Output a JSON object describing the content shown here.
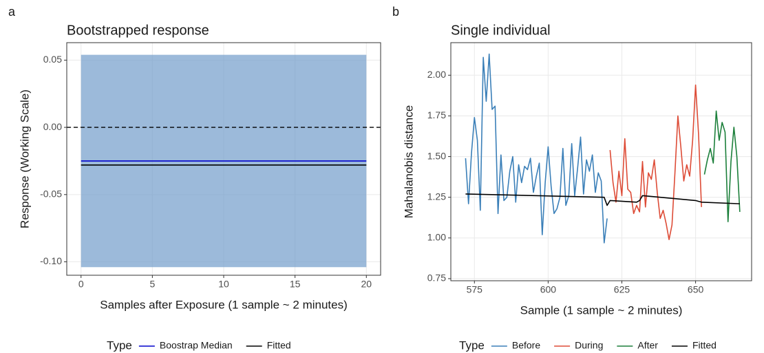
{
  "chart_data": [
    {
      "type": "line",
      "panel_label": "a",
      "title": "Bootstrapped response",
      "x_label": "Samples after Exposure (1 sample ~ 2 minutes)",
      "y_label": "Response (Working Scale)",
      "xlim": [
        -1,
        21
      ],
      "ylim": [
        -0.11,
        0.063
      ],
      "xticks": [
        0,
        5,
        10,
        15,
        20
      ],
      "yticks": [
        {
          "value": -0.1,
          "label": "-0.10"
        },
        -0.05,
        {
          "value": 0,
          "label": "0.00"
        },
        0.05
      ],
      "grid": true,
      "band": {
        "x": [
          0,
          20
        ],
        "lower": [
          -0.104,
          -0.104
        ],
        "upper": [
          0.054,
          0.054
        ],
        "color": "#6d9ac8"
      },
      "hline": 0,
      "legend_title": "Type",
      "legend_position": "bottom",
      "series": [
        {
          "name": "Boostrap Median",
          "color": "#0000cc",
          "x": [
            0,
            20
          ],
          "values": [
            -0.025,
            -0.025
          ]
        },
        {
          "name": "Fitted",
          "color": "#000000",
          "x": [
            0,
            20
          ],
          "values": [
            -0.028,
            -0.028
          ]
        }
      ]
    },
    {
      "type": "line",
      "panel_label": "b",
      "title": "Single individual",
      "x_label": "Sample (1 sample ~ 2 minutes)",
      "y_label": "Mahalanobis distance",
      "xlim": [
        567,
        669
      ],
      "ylim": [
        0.737,
        2.2
      ],
      "xticks": [
        575,
        600,
        625,
        650
      ],
      "yticks": [
        0.75,
        {
          "value": 1,
          "label": "1.00"
        },
        1.25,
        {
          "value": 1.5,
          "label": "1.50"
        },
        1.75,
        {
          "value": 2,
          "label": "2.00"
        }
      ],
      "grid": true,
      "legend_title": "Type",
      "legend_position": "bottom",
      "series": [
        {
          "name": "Before",
          "color": "#3a7fb8",
          "x": [
            572,
            573,
            574,
            575,
            576,
            577,
            578,
            579,
            580,
            581,
            582,
            583,
            584,
            585,
            586,
            587,
            588,
            589,
            590,
            591,
            592,
            593,
            594,
            595,
            596,
            597,
            598,
            599,
            600,
            601,
            602,
            603,
            604,
            605,
            606,
            607,
            608,
            609,
            610,
            611,
            612,
            613,
            614,
            615,
            616,
            617,
            618,
            619,
            620
          ],
          "values": [
            1.49,
            1.21,
            1.52,
            1.74,
            1.6,
            1.17,
            2.11,
            1.84,
            2.13,
            1.79,
            1.81,
            1.15,
            1.51,
            1.23,
            1.25,
            1.41,
            1.5,
            1.22,
            1.45,
            1.34,
            1.44,
            1.42,
            1.49,
            1.28,
            1.38,
            1.46,
            1.02,
            1.34,
            1.56,
            1.32,
            1.15,
            1.18,
            1.25,
            1.55,
            1.2,
            1.26,
            1.58,
            1.26,
            1.43,
            1.62,
            1.27,
            1.48,
            1.41,
            1.51,
            1.28,
            1.4,
            1.35,
            0.97,
            1.12
          ]
        },
        {
          "name": "During",
          "color": "#dd4b36",
          "x": [
            621,
            622,
            623,
            624,
            625,
            626,
            627,
            628,
            629,
            630,
            631,
            632,
            633,
            634,
            635,
            636,
            637,
            638,
            639,
            640,
            641,
            642,
            643,
            644,
            645,
            646,
            647,
            648,
            649,
            650,
            651,
            652
          ],
          "values": [
            1.54,
            1.34,
            1.22,
            1.41,
            1.26,
            1.61,
            1.3,
            1.28,
            1.15,
            1.2,
            1.16,
            1.47,
            1.19,
            1.4,
            1.36,
            1.48,
            1.28,
            1.12,
            1.17,
            1.09,
            0.99,
            1.08,
            1.4,
            1.75,
            1.56,
            1.35,
            1.45,
            1.38,
            1.6,
            1.94,
            1.64,
            1.19
          ]
        },
        {
          "name": "After",
          "color": "#1b7f3a",
          "x": [
            653,
            654,
            655,
            656,
            657,
            658,
            659,
            660,
            661,
            662,
            663,
            664,
            665
          ],
          "values": [
            1.39,
            1.48,
            1.55,
            1.46,
            1.78,
            1.6,
            1.71,
            1.65,
            1.1,
            1.47,
            1.68,
            1.5,
            1.16
          ]
        },
        {
          "name": "Fitted",
          "color": "#000000",
          "x": [
            572,
            619,
            620,
            621,
            630,
            631,
            632,
            650,
            652,
            665
          ],
          "values": [
            1.27,
            1.25,
            1.2,
            1.23,
            1.22,
            1.23,
            1.26,
            1.23,
            1.22,
            1.21
          ]
        }
      ]
    }
  ]
}
